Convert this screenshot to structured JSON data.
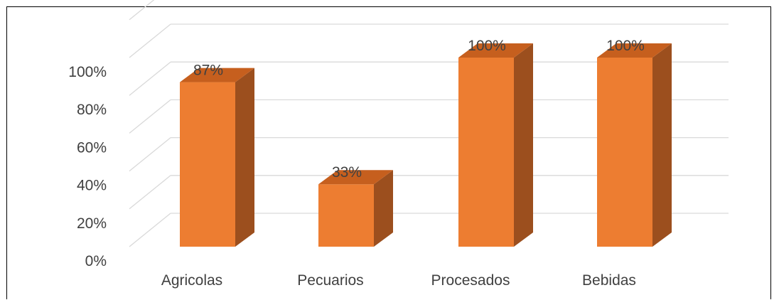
{
  "chart_data": {
    "type": "bar",
    "style": "3d-column",
    "categories": [
      "Agricolas",
      "Pecuarios",
      "Procesados",
      "Bebidas"
    ],
    "values": [
      87,
      33,
      100,
      100
    ],
    "value_unit": "%",
    "data_labels": [
      "87%",
      "33%",
      "100%",
      "100%"
    ],
    "y_ticks": [
      0,
      20,
      40,
      60,
      80,
      100
    ],
    "y_tick_labels": [
      "0%",
      "20%",
      "40%",
      "60%",
      "80%",
      "100%"
    ],
    "ylim": [
      0,
      120
    ],
    "grid": true,
    "legend": "none",
    "colors": {
      "bar_front": "#ED7D31",
      "bar_side": "#9C4F1E",
      "bar_top": "#C65F1E",
      "grid": "#D9D9D9",
      "text": "#404040"
    }
  }
}
